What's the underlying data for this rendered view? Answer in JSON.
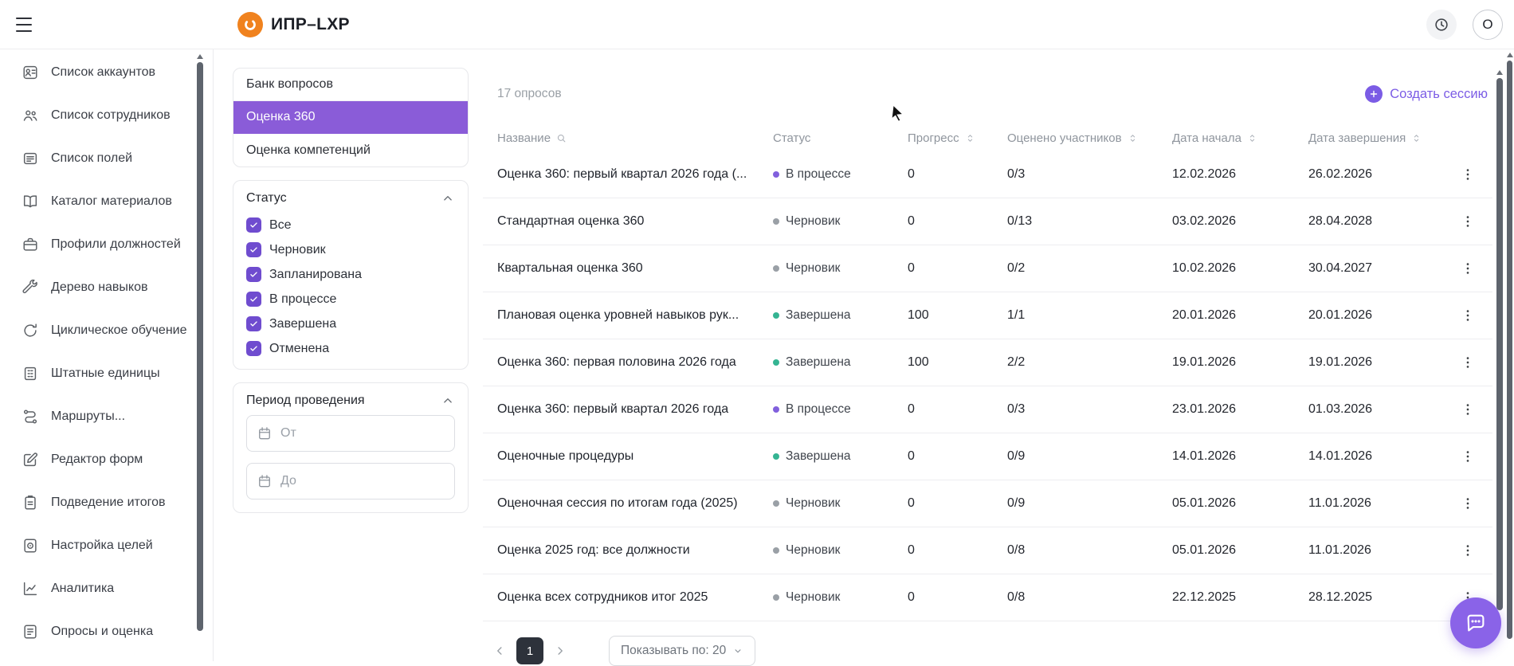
{
  "header": {
    "app_title": "ИПР–LXP",
    "avatar_letter": "O"
  },
  "sidebar": {
    "items": [
      {
        "key": "accounts",
        "label": "Список аккаунтов",
        "icon": "account-list-icon"
      },
      {
        "key": "employees",
        "label": "Список сотрудников",
        "icon": "employees-icon"
      },
      {
        "key": "fields",
        "label": "Список полей",
        "icon": "fields-list-icon"
      },
      {
        "key": "materials",
        "label": "Каталог материалов",
        "icon": "materials-catalog-icon"
      },
      {
        "key": "profiles",
        "label": "Профили должностей",
        "icon": "job-profiles-icon"
      },
      {
        "key": "skills",
        "label": "Дерево навыков",
        "icon": "skill-tree-icon"
      },
      {
        "key": "cyclic",
        "label": "Циклическое обучение",
        "icon": "cyclic-learning-icon"
      },
      {
        "key": "staff",
        "label": "Штатные единицы",
        "icon": "staff-units-icon"
      },
      {
        "key": "routes",
        "label": "Маршруты...",
        "icon": "routes-icon"
      },
      {
        "key": "forms",
        "label": "Редактор форм",
        "icon": "form-editor-icon"
      },
      {
        "key": "results",
        "label": "Подведение итогов",
        "icon": "results-icon"
      },
      {
        "key": "goals",
        "label": "Настройка целей",
        "icon": "goals-icon"
      },
      {
        "key": "analytics",
        "label": "Аналитика",
        "icon": "analytics-icon"
      },
      {
        "key": "surveys",
        "label": "Опросы и оценка",
        "icon": "surveys-icon"
      }
    ]
  },
  "filters": {
    "tabs": [
      {
        "key": "question-bank",
        "label": "Банк вопросов",
        "active": false
      },
      {
        "key": "assessment-360",
        "label": "Оценка 360",
        "active": true
      },
      {
        "key": "competency-assessment",
        "label": "Оценка компетенций",
        "active": false
      }
    ],
    "status": {
      "title": "Статус",
      "options": [
        {
          "key": "all",
          "label": "Все",
          "checked": true
        },
        {
          "key": "draft",
          "label": "Черновик",
          "checked": true
        },
        {
          "key": "planned",
          "label": "Запланирована",
          "checked": true
        },
        {
          "key": "in-progress",
          "label": "В процессе",
          "checked": true
        },
        {
          "key": "completed",
          "label": "Завершена",
          "checked": true
        },
        {
          "key": "cancelled",
          "label": "Отменена",
          "checked": true
        }
      ]
    },
    "period": {
      "title": "Период проведения",
      "from_placeholder": "От",
      "to_placeholder": "До"
    }
  },
  "main": {
    "count_label": "17 опросов",
    "create_button": "Создать сессию",
    "table": {
      "columns": [
        {
          "label": "Название",
          "icon": "search"
        },
        {
          "label": "Статус",
          "icon": null
        },
        {
          "label": "Прогресс",
          "icon": "sort"
        },
        {
          "label": "Оценено участников",
          "icon": "sort"
        },
        {
          "label": "Дата начала",
          "icon": "sort"
        },
        {
          "label": "Дата завершения",
          "icon": "sort"
        }
      ],
      "rows": [
        {
          "name": "Оценка 360: первый квартал 2026 года (...",
          "status": "В процессе",
          "status_color": "#8160dd",
          "progress": "0",
          "participants": "0/3",
          "start": "12.02.2026",
          "end": "26.02.2026"
        },
        {
          "name": "Стандартная оценка 360",
          "status": "Черновик",
          "status_color": "#9aa0a6",
          "progress": "0",
          "participants": "0/13",
          "start": "03.02.2026",
          "end": "28.04.2028"
        },
        {
          "name": "Квартальная оценка 360",
          "status": "Черновик",
          "status_color": "#9aa0a6",
          "progress": "0",
          "participants": "0/2",
          "start": "10.02.2026",
          "end": "30.04.2027"
        },
        {
          "name": "Плановая оценка уровней навыков рук...",
          "status": "Завершена",
          "status_color": "#35b492",
          "progress": "100",
          "participants": "1/1",
          "start": "20.01.2026",
          "end": "20.01.2026"
        },
        {
          "name": "Оценка 360: первая половина 2026 года",
          "status": "Завершена",
          "status_color": "#35b492",
          "progress": "100",
          "participants": "2/2",
          "start": "19.01.2026",
          "end": "19.01.2026"
        },
        {
          "name": "Оценка 360: первый квартал 2026 года",
          "status": "В процессе",
          "status_color": "#8160dd",
          "progress": "0",
          "participants": "0/3",
          "start": "23.01.2026",
          "end": "01.03.2026"
        },
        {
          "name": "Оценочные процедуры",
          "status": "Завершена",
          "status_color": "#35b492",
          "progress": "0",
          "participants": "0/9",
          "start": "14.01.2026",
          "end": "14.01.2026"
        },
        {
          "name": "Оценочная сессия по итогам года (2025)",
          "status": "Черновик",
          "status_color": "#9aa0a6",
          "progress": "0",
          "participants": "0/9",
          "start": "05.01.2026",
          "end": "11.01.2026"
        },
        {
          "name": "Оценка 2025 год: все должности",
          "status": "Черновик",
          "status_color": "#9aa0a6",
          "progress": "0",
          "participants": "0/8",
          "start": "05.01.2026",
          "end": "11.01.2026"
        },
        {
          "name": "Оценка всех сотрудников итог 2025",
          "status": "Черновик",
          "status_color": "#9aa0a6",
          "progress": "0",
          "participants": "0/8",
          "start": "22.12.2025",
          "end": "28.12.2025"
        }
      ]
    },
    "pagination": {
      "page": "1",
      "per_page_label": "Показывать по: 20"
    }
  },
  "colors": {
    "accent_purple": "#8a5cd8",
    "link_purple": "#7b5ce5",
    "checkbox_purple": "#6f4ccf",
    "status_in_progress": "#8160dd",
    "status_draft": "#9aa0a6",
    "status_completed": "#35b492",
    "logo_orange": "#f0821e",
    "fab_purple": "#8a63e8"
  }
}
